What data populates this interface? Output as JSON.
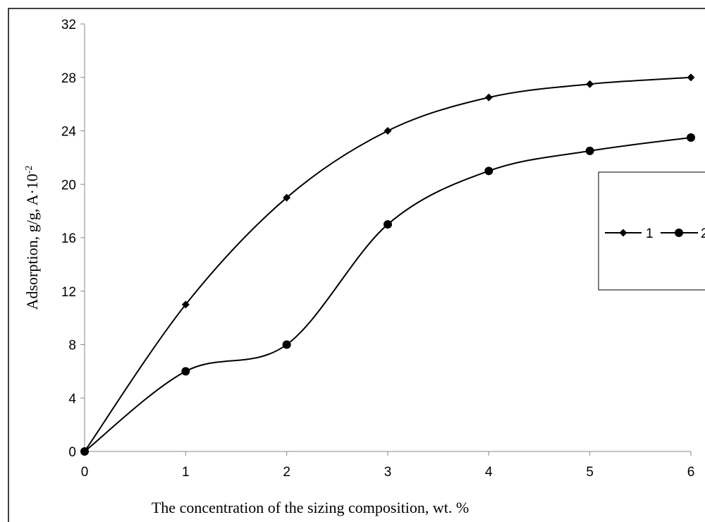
{
  "chart_data": {
    "type": "line",
    "title": "",
    "xlabel": "The concentration of the sizing composition, wt. %",
    "ylabel_main": "Adsorption, g/g, A·10",
    "ylabel_exp": "-2",
    "x": [
      0,
      1,
      2,
      3,
      4,
      5,
      6
    ],
    "xlim": [
      0,
      6
    ],
    "ylim": [
      0,
      32
    ],
    "xticks": [
      "0",
      "1",
      "2",
      "3",
      "4",
      "5",
      "6"
    ],
    "yticks": [
      "0",
      "4",
      "8",
      "12",
      "16",
      "20",
      "24",
      "28",
      "32"
    ],
    "grid": false,
    "legend_position": "right",
    "series": [
      {
        "name": "1",
        "marker": "diamond",
        "color": "#000000",
        "values": [
          0,
          11,
          19,
          24,
          26.5,
          27.5,
          28
        ]
      },
      {
        "name": "2",
        "marker": "circle",
        "color": "#000000",
        "values": [
          0,
          6,
          8,
          17,
          21,
          22.5,
          23.5
        ]
      }
    ]
  }
}
